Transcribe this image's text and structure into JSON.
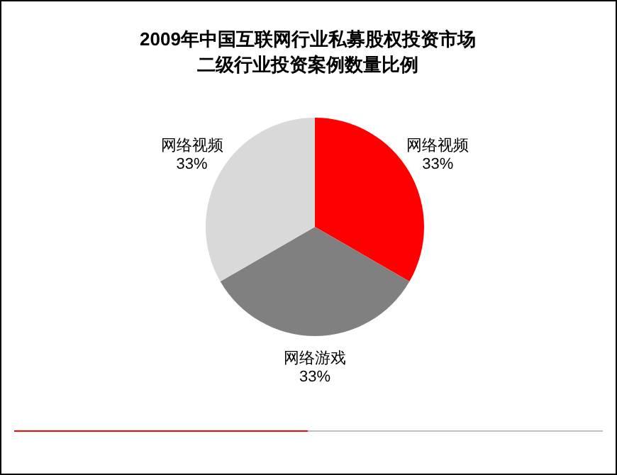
{
  "chart_data": {
    "type": "pie",
    "title": "2009年中国互联网行业私募股权投资市场二级行业投资案例数量比例",
    "categories": [
      "网络视频",
      "网络游戏",
      "网络视频"
    ],
    "values": [
      33,
      33,
      33
    ],
    "value_labels": [
      "33%",
      "33%",
      "33%"
    ],
    "colors": [
      "#ff0000",
      "#808080",
      "#d9d9d9"
    ]
  }
}
